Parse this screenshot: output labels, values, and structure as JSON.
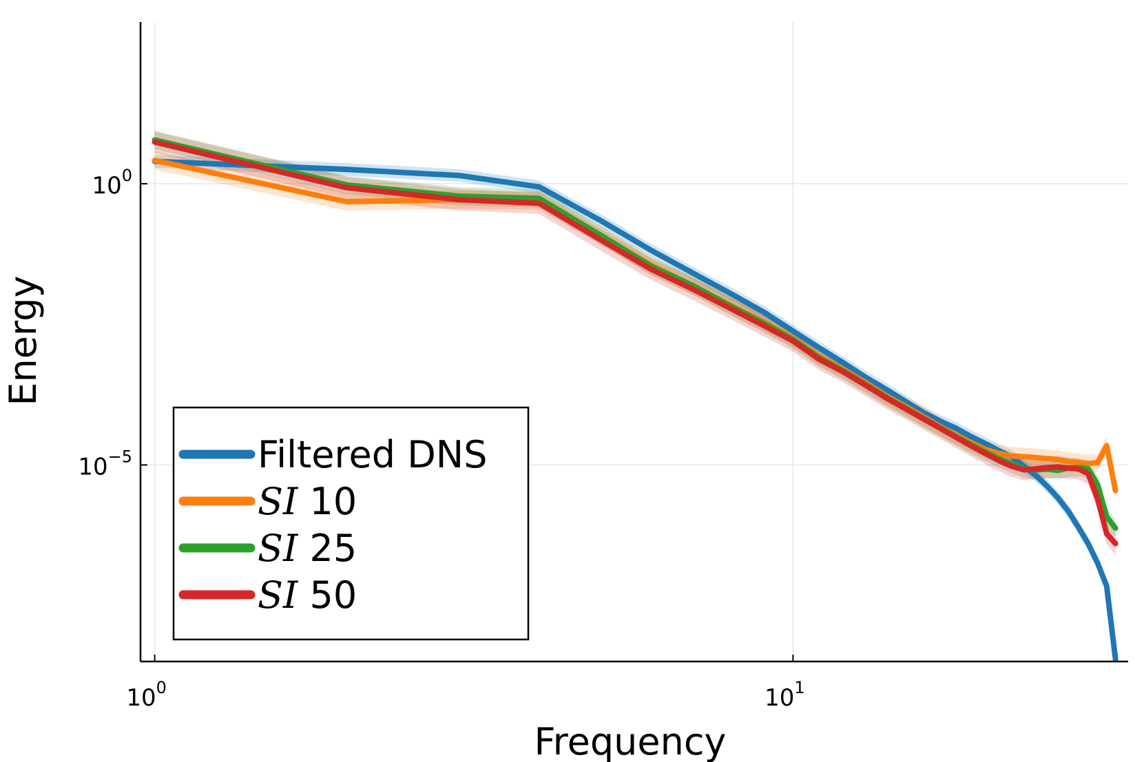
{
  "chart_data": {
    "type": "line",
    "title": "",
    "xlabel": "Frequency",
    "ylabel": "Energy",
    "xscale": "log",
    "yscale": "log",
    "xlim": [
      0.95,
      33.5
    ],
    "ylim": [
      3.2e-09,
      750.0
    ],
    "grid": true,
    "legend_position": "bottom-left",
    "x_ticks": [
      {
        "value": 1,
        "base": "10",
        "exp": "0"
      },
      {
        "value": 10,
        "base": "10",
        "exp": "1"
      }
    ],
    "y_ticks": [
      {
        "value": 1,
        "base": "10",
        "exp": "0"
      },
      {
        "value": 1e-05,
        "base": "10",
        "exp": "−5"
      }
    ],
    "series": [
      {
        "name": "Filtered DNS",
        "name_prefix": "",
        "name_suffix": "Filtered DNS",
        "color": "#1f77b4",
        "x": [
          1,
          2,
          3,
          4,
          5,
          6,
          7,
          8,
          9,
          10,
          11,
          12,
          13,
          14,
          15,
          16,
          17,
          18,
          19,
          20,
          21,
          22,
          23,
          24,
          25,
          26,
          27,
          28,
          29,
          30,
          31,
          32
        ],
        "y": [
          2.5,
          1.8,
          1.4,
          0.88,
          0.22,
          0.065,
          0.025,
          0.011,
          0.0052,
          0.0024,
          0.0012,
          0.00065,
          0.00036,
          0.00022,
          0.000135,
          8.5e-05,
          6e-05,
          4.5e-05,
          3.2e-05,
          2.4e-05,
          1.8e-05,
          1.4e-05,
          9.5e-06,
          6.5e-06,
          4.2e-06,
          2.6e-06,
          1.5e-06,
          7.8e-07,
          4e-07,
          1.8e-07,
          7e-08,
          3.5e-09
        ],
        "band_factor": 1.3
      },
      {
        "name": "SI 10",
        "name_prefix": "SI",
        "name_suffix": " 10",
        "color": "#ff7f0e",
        "x": [
          1,
          2,
          3,
          4,
          5,
          6,
          7,
          8,
          9,
          10,
          11,
          12,
          13,
          14,
          15,
          16,
          17,
          18,
          19,
          20,
          21,
          22,
          23,
          24,
          25,
          26,
          27,
          28,
          29,
          30,
          31,
          32
        ],
        "y": [
          2.6,
          0.48,
          0.52,
          0.5,
          0.12,
          0.035,
          0.015,
          0.0068,
          0.0035,
          0.0018,
          0.00085,
          0.0005,
          0.00029,
          0.00017,
          0.00011,
          7.2e-05,
          4.8e-05,
          3.4e-05,
          2.5e-05,
          1.9e-05,
          1.6e-05,
          1.45e-05,
          1.4e-05,
          1.35e-05,
          1.3e-05,
          1.25e-05,
          1.15e-05,
          1.1e-05,
          1.05e-05,
          1.1e-05,
          2.2e-05,
          3.5e-06
        ],
        "band_factor": 1.45
      },
      {
        "name": "SI 25",
        "name_prefix": "SI",
        "name_suffix": " 25",
        "color": "#2ca02c",
        "x": [
          1,
          2,
          3,
          4,
          5,
          6,
          7,
          8,
          9,
          10,
          11,
          12,
          13,
          14,
          15,
          16,
          17,
          18,
          19,
          20,
          21,
          22,
          23,
          24,
          25,
          26,
          27,
          28,
          29,
          30,
          31,
          32
        ],
        "y": [
          6.0,
          0.95,
          0.6,
          0.55,
          0.12,
          0.034,
          0.015,
          0.0066,
          0.0033,
          0.0017,
          0.0008,
          0.00047,
          0.00027,
          0.00016,
          0.000103,
          6.8e-05,
          4.6e-05,
          3.2e-05,
          2.3e-05,
          1.7e-05,
          1.3e-05,
          1.05e-05,
          8.5e-06,
          8.2e-06,
          8.4e-06,
          8e-06,
          8.8e-06,
          9e-06,
          8.5e-06,
          4.5e-06,
          1.2e-06,
          7.5e-07
        ],
        "band_factor": 1.45
      },
      {
        "name": "SI 50",
        "name_prefix": "SI",
        "name_suffix": " 50",
        "color": "#d62728",
        "x": [
          1,
          2,
          3,
          4,
          5,
          6,
          7,
          8,
          9,
          10,
          11,
          12,
          13,
          14,
          15,
          16,
          17,
          18,
          19,
          20,
          21,
          22,
          23,
          24,
          25,
          26,
          27,
          28,
          29,
          30,
          31,
          32
        ],
        "y": [
          5.5,
          0.85,
          0.52,
          0.45,
          0.1,
          0.03,
          0.013,
          0.006,
          0.003,
          0.0016,
          0.00075,
          0.00045,
          0.00026,
          0.000155,
          0.0001,
          6.6e-05,
          4.5e-05,
          3.1e-05,
          2.2e-05,
          1.6e-05,
          1.2e-05,
          9.5e-06,
          8.2e-06,
          8.5e-06,
          9e-06,
          9.2e-06,
          8.8e-06,
          8.5e-06,
          7e-06,
          2.5e-06,
          6e-07,
          4e-07
        ],
        "band_factor": 1.55
      }
    ]
  }
}
